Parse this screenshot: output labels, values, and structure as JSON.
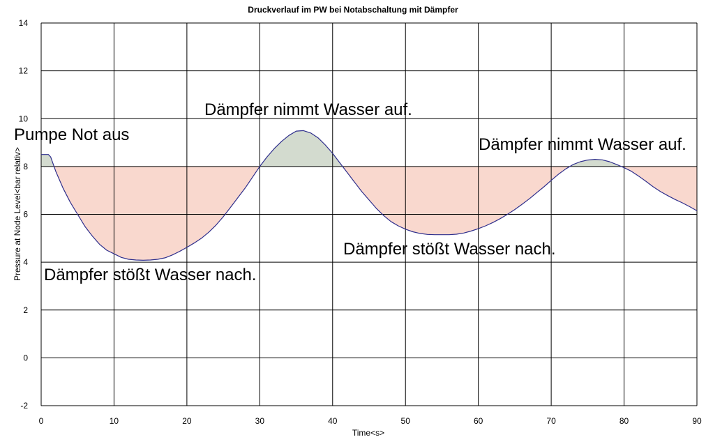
{
  "chart_data": {
    "type": "line",
    "title": "Druckverlauf im PW bei Notabschaltung mit Dämpfer",
    "xlabel": "Time<s>",
    "ylabel": "Pressure at Node Level<bar relativ>",
    "xlim": [
      0,
      90
    ],
    "ylim": [
      -2,
      14
    ],
    "xticks": [
      0,
      10,
      20,
      30,
      40,
      50,
      60,
      70,
      80,
      90
    ],
    "yticks": [
      -2,
      0,
      2,
      4,
      6,
      8,
      10,
      12,
      14
    ],
    "grid": true,
    "reference_level": 8,
    "colors": {
      "line": "#2e2e8c",
      "below_fill": "#f9d8ce",
      "above_fill": "#d3dbcf",
      "grid": "#000000"
    },
    "series": [
      {
        "x": [
          0,
          1,
          1.3,
          2,
          3,
          4,
          5,
          6,
          7,
          8,
          9,
          10,
          11,
          12,
          13,
          14,
          15,
          16,
          17,
          18,
          19,
          20,
          21,
          22,
          23,
          24,
          25,
          26,
          27,
          28,
          29,
          30,
          31,
          32,
          33,
          34,
          35,
          36,
          37,
          38,
          39,
          40,
          41,
          42,
          43,
          44,
          45,
          46,
          47,
          48,
          49,
          50,
          51,
          52,
          53,
          54,
          55,
          56,
          57,
          58,
          59,
          60,
          61,
          62,
          63,
          64,
          65,
          66,
          67,
          68,
          69,
          70,
          71,
          72,
          73,
          74,
          75,
          76,
          77,
          78,
          79,
          80,
          81,
          82,
          83,
          84,
          85,
          86,
          87,
          88,
          89,
          90
        ],
        "y": [
          8.5,
          8.5,
          8.4,
          7.8,
          7.1,
          6.5,
          6.0,
          5.5,
          5.1,
          4.75,
          4.5,
          4.35,
          4.2,
          4.12,
          4.09,
          4.08,
          4.09,
          4.12,
          4.18,
          4.3,
          4.45,
          4.62,
          4.8,
          5.0,
          5.25,
          5.55,
          5.9,
          6.3,
          6.7,
          7.1,
          7.55,
          8.0,
          8.4,
          8.75,
          9.05,
          9.3,
          9.48,
          9.5,
          9.4,
          9.2,
          8.9,
          8.55,
          8.15,
          7.75,
          7.35,
          6.95,
          6.6,
          6.25,
          5.95,
          5.7,
          5.52,
          5.38,
          5.27,
          5.2,
          5.16,
          5.15,
          5.15,
          5.15,
          5.17,
          5.22,
          5.3,
          5.4,
          5.52,
          5.66,
          5.82,
          6.0,
          6.2,
          6.42,
          6.65,
          6.9,
          7.15,
          7.42,
          7.68,
          7.9,
          8.08,
          8.2,
          8.27,
          8.3,
          8.28,
          8.2,
          8.08,
          7.95,
          7.8,
          7.6,
          7.38,
          7.15,
          6.95,
          6.78,
          6.62,
          6.48,
          6.32,
          6.15
        ]
      }
    ]
  },
  "annotations": {
    "pump_off": "Pumpe Not aus",
    "damper_absorbs_1": "Dämpfer nimmt Wasser auf.",
    "damper_absorbs_2": "Dämpfer nimmt Wasser auf.",
    "damper_releases_1": "Dämpfer stößt Wasser nach.",
    "damper_releases_2": "Dämpfer stößt Wasser nach."
  }
}
